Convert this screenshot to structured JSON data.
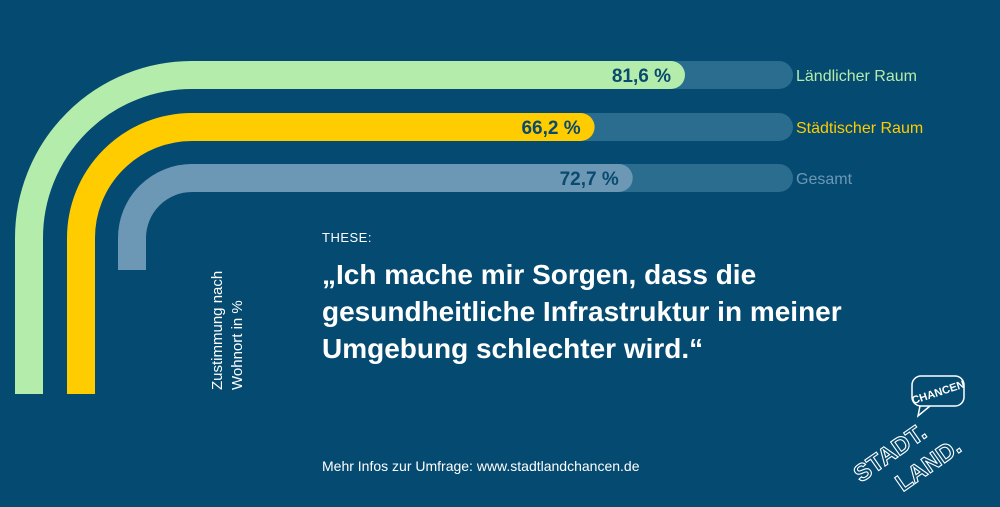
{
  "chart_data": {
    "type": "bar",
    "orientation": "horizontal",
    "categories": [
      "Ländlicher Raum",
      "Städtischer Raum",
      "Gesamt"
    ],
    "values": [
      81.6,
      66.2,
      72.7
    ],
    "value_labels": [
      "81,6 %",
      "66,2 %",
      "72,7 %"
    ],
    "xlim": [
      0,
      100
    ],
    "axis_label_line1": "Zustimmung nach",
    "axis_label_line2": "Wohnort in %",
    "grid": false,
    "legend": "right",
    "colors": [
      "#b4ecac",
      "#ffcc00",
      "#6c98b6"
    ],
    "track_color": "#2b6d8e",
    "value_text_color": "#0a4a6e"
  },
  "thesis": {
    "label": "THESE:",
    "quote": "„Ich mache mir Sorgen, dass die gesundheitliche Infrastruktur in meiner Umgebung schlechter wird.“"
  },
  "footer": {
    "text": "Mehr Infos zur Umfrage: www.stadtlandchancen.de"
  },
  "logo": {
    "line1": "STADT.",
    "line2": "LAND.",
    "badge": "CHANCEN"
  },
  "colors": {
    "background": "#054a70",
    "text": "#ffffff"
  }
}
